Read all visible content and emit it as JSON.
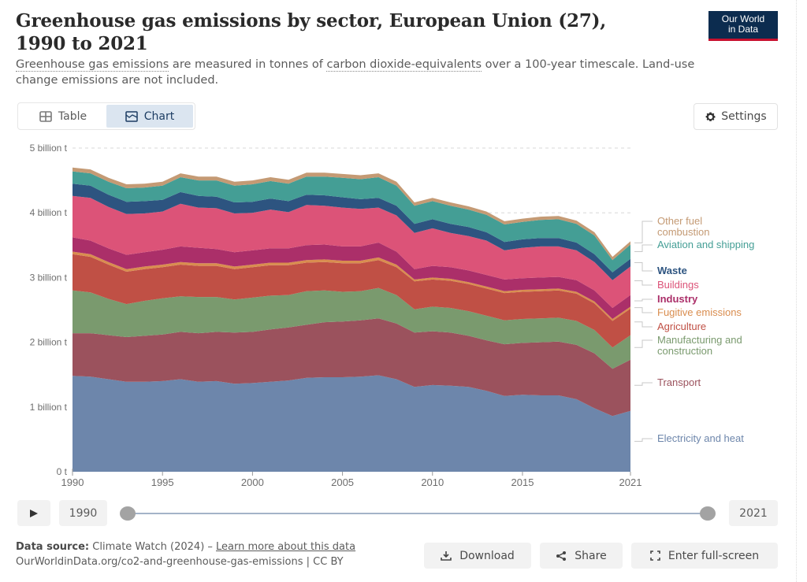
{
  "header": {
    "title": "Greenhouse gas emissions by sector, European Union (27), 1990 to 2021",
    "subtitle_parts": {
      "link1": "Greenhouse gas emissions",
      "text1": " are measured in tonnes of ",
      "link2": "carbon dioxide-equivalents",
      "text2": " over a 100-year timescale. Land-use change emissions are not included."
    },
    "logo_line1": "Our World",
    "logo_line2": "in Data"
  },
  "tabs": [
    {
      "label": "Table",
      "icon": "table-icon",
      "active": false
    },
    {
      "label": "Chart",
      "icon": "chart-icon",
      "active": true
    }
  ],
  "settings_label": "Settings",
  "timeline": {
    "start_year": "1990",
    "end_year": "2021"
  },
  "footer": {
    "source_label": "Data source:",
    "source_text": " Climate Watch (2024) – ",
    "learn_more": "Learn more about this data",
    "url": "OurWorldinData.org/co2-and-greenhouse-gas-emissions | CC BY"
  },
  "actions": {
    "download": "Download",
    "share": "Share",
    "fullscreen": "Enter full-screen"
  },
  "chart_data": {
    "type": "area",
    "stacked": true,
    "title": "Greenhouse gas emissions by sector, European Union (27), 1990 to 2021",
    "xlabel": "",
    "ylabel": "",
    "x": [
      1990,
      1991,
      1992,
      1993,
      1994,
      1995,
      1996,
      1997,
      1998,
      1999,
      2000,
      2001,
      2002,
      2003,
      2004,
      2005,
      2006,
      2007,
      2008,
      2009,
      2010,
      2011,
      2012,
      2013,
      2014,
      2015,
      2016,
      2017,
      2018,
      2019,
      2020,
      2021
    ],
    "ylim": [
      0,
      5
    ],
    "yticks": [
      0,
      1,
      2,
      3,
      4,
      5
    ],
    "ytick_labels": [
      "0 t",
      "1 billion t",
      "2 billion t",
      "3 billion t",
      "4 billion t",
      "5 billion t"
    ],
    "xticks": [
      1990,
      1995,
      2000,
      2005,
      2010,
      2015,
      2021
    ],
    "xtick_labels": [
      "1990",
      "1995",
      "2000",
      "2005",
      "2010",
      "2015",
      "2021"
    ],
    "grid": "horizontal-dashed",
    "legend_placement": "right",
    "units": "billion tonnes CO2e",
    "series": [
      {
        "name": "Electricity and heat",
        "color": "#6d86ab",
        "values": [
          1.48,
          1.47,
          1.43,
          1.39,
          1.39,
          1.4,
          1.43,
          1.39,
          1.4,
          1.36,
          1.37,
          1.39,
          1.41,
          1.45,
          1.46,
          1.46,
          1.47,
          1.49,
          1.43,
          1.31,
          1.34,
          1.33,
          1.31,
          1.25,
          1.17,
          1.19,
          1.18,
          1.18,
          1.12,
          0.98,
          0.86,
          0.94
        ]
      },
      {
        "name": "Transport",
        "color": "#9b525d",
        "values": [
          0.66,
          0.67,
          0.68,
          0.69,
          0.71,
          0.72,
          0.73,
          0.75,
          0.76,
          0.79,
          0.79,
          0.81,
          0.82,
          0.82,
          0.85,
          0.86,
          0.87,
          0.88,
          0.86,
          0.84,
          0.83,
          0.82,
          0.79,
          0.78,
          0.8,
          0.8,
          0.82,
          0.83,
          0.84,
          0.85,
          0.73,
          0.79
        ]
      },
      {
        "name": "Manufacturing and construction",
        "color": "#7a9a6e",
        "values": [
          0.66,
          0.63,
          0.56,
          0.51,
          0.54,
          0.56,
          0.55,
          0.56,
          0.54,
          0.51,
          0.53,
          0.52,
          0.5,
          0.52,
          0.49,
          0.46,
          0.45,
          0.47,
          0.44,
          0.36,
          0.38,
          0.38,
          0.38,
          0.38,
          0.37,
          0.37,
          0.37,
          0.37,
          0.37,
          0.36,
          0.33,
          0.38
        ]
      },
      {
        "name": "Agriculture",
        "color": "#c05045",
        "values": [
          0.56,
          0.55,
          0.53,
          0.5,
          0.49,
          0.48,
          0.49,
          0.48,
          0.48,
          0.47,
          0.47,
          0.47,
          0.46,
          0.44,
          0.44,
          0.44,
          0.43,
          0.43,
          0.43,
          0.43,
          0.42,
          0.42,
          0.42,
          0.42,
          0.42,
          0.42,
          0.42,
          0.42,
          0.42,
          0.41,
          0.41,
          0.41
        ]
      },
      {
        "name": "Fugitive emissions",
        "color": "#d98d4f",
        "values": [
          0.04,
          0.04,
          0.04,
          0.04,
          0.04,
          0.04,
          0.04,
          0.04,
          0.04,
          0.04,
          0.04,
          0.04,
          0.04,
          0.04,
          0.04,
          0.04,
          0.04,
          0.04,
          0.04,
          0.03,
          0.03,
          0.03,
          0.03,
          0.03,
          0.03,
          0.03,
          0.03,
          0.03,
          0.03,
          0.03,
          0.03,
          0.03
        ]
      },
      {
        "name": "Industry",
        "color": "#ab2f69",
        "values": [
          0.22,
          0.21,
          0.21,
          0.22,
          0.22,
          0.23,
          0.24,
          0.24,
          0.22,
          0.22,
          0.22,
          0.22,
          0.22,
          0.23,
          0.23,
          0.22,
          0.22,
          0.23,
          0.2,
          0.16,
          0.18,
          0.18,
          0.18,
          0.18,
          0.18,
          0.18,
          0.18,
          0.18,
          0.18,
          0.17,
          0.17,
          0.18
        ]
      },
      {
        "name": "Buildings",
        "color": "#dc5378",
        "values": [
          0.64,
          0.66,
          0.64,
          0.63,
          0.6,
          0.59,
          0.66,
          0.62,
          0.63,
          0.6,
          0.58,
          0.6,
          0.56,
          0.62,
          0.6,
          0.6,
          0.58,
          0.54,
          0.56,
          0.56,
          0.58,
          0.53,
          0.53,
          0.53,
          0.45,
          0.47,
          0.48,
          0.47,
          0.46,
          0.44,
          0.43,
          0.44
        ]
      },
      {
        "name": "Waste",
        "color": "#2d5480",
        "values": [
          0.19,
          0.19,
          0.19,
          0.19,
          0.19,
          0.18,
          0.18,
          0.18,
          0.18,
          0.17,
          0.17,
          0.17,
          0.17,
          0.16,
          0.16,
          0.16,
          0.15,
          0.15,
          0.15,
          0.14,
          0.14,
          0.14,
          0.14,
          0.13,
          0.13,
          0.13,
          0.13,
          0.13,
          0.12,
          0.12,
          0.12,
          0.12
        ]
      },
      {
        "name": "Aviation and shipping",
        "color": "#449e95",
        "values": [
          0.19,
          0.19,
          0.2,
          0.21,
          0.21,
          0.22,
          0.23,
          0.24,
          0.25,
          0.26,
          0.27,
          0.27,
          0.27,
          0.28,
          0.29,
          0.3,
          0.31,
          0.32,
          0.31,
          0.28,
          0.28,
          0.28,
          0.27,
          0.27,
          0.27,
          0.27,
          0.28,
          0.29,
          0.29,
          0.29,
          0.19,
          0.22
        ]
      },
      {
        "name": "Other fuel combustion",
        "color": "#c49a74",
        "values": [
          0.06,
          0.06,
          0.06,
          0.06,
          0.06,
          0.06,
          0.06,
          0.06,
          0.06,
          0.06,
          0.06,
          0.06,
          0.06,
          0.06,
          0.06,
          0.06,
          0.06,
          0.06,
          0.06,
          0.05,
          0.05,
          0.05,
          0.05,
          0.05,
          0.05,
          0.05,
          0.05,
          0.05,
          0.05,
          0.05,
          0.05,
          0.05
        ]
      }
    ],
    "legend": [
      {
        "label_lines": [
          "Other fuel",
          "combustion"
        ],
        "color": "#c49a74"
      },
      {
        "label_lines": [
          "Aviation and shipping"
        ],
        "color": "#449e95"
      },
      {
        "label_lines": [
          "Waste"
        ],
        "color": "#2d5480"
      },
      {
        "label_lines": [
          "Buildings"
        ],
        "color": "#dc5378"
      },
      {
        "label_lines": [
          "Industry"
        ],
        "color": "#ab2f69"
      },
      {
        "label_lines": [
          "Fugitive emissions"
        ],
        "color": "#d98d4f"
      },
      {
        "label_lines": [
          "Agriculture"
        ],
        "color": "#c05045"
      },
      {
        "label_lines": [
          "Manufacturing and",
          "construction"
        ],
        "color": "#7a9a6e"
      },
      {
        "label_lines": [
          "Transport"
        ],
        "color": "#9b525d"
      },
      {
        "label_lines": [
          "Electricity and heat"
        ],
        "color": "#6d86ab"
      }
    ]
  }
}
